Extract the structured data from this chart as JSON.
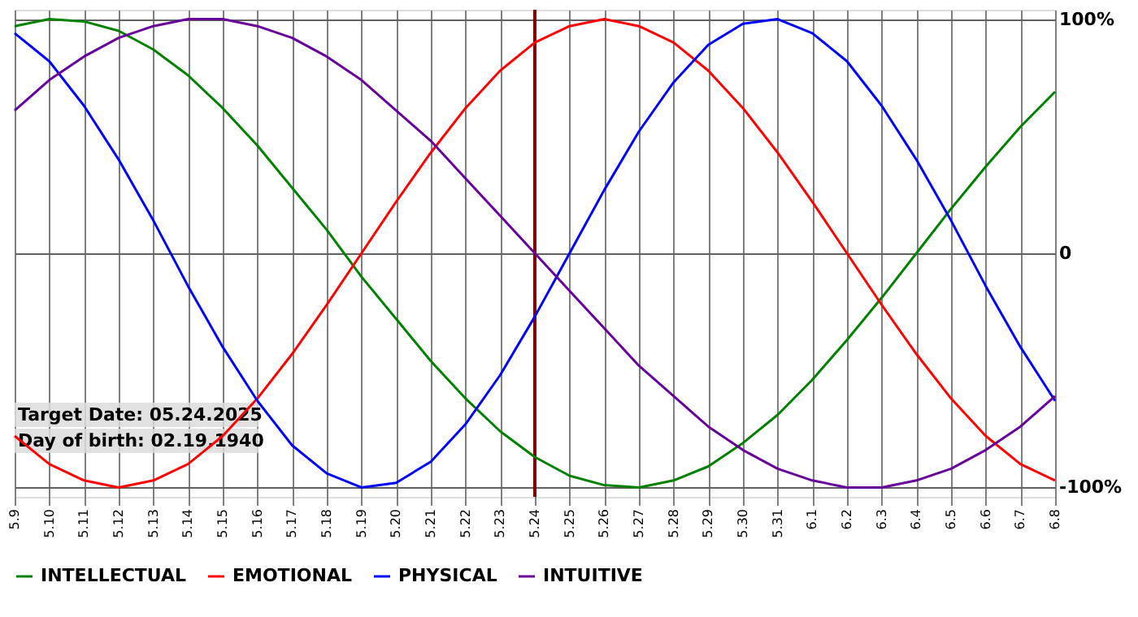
{
  "chart_data": {
    "type": "line",
    "categories": [
      "5.9",
      "5.10",
      "5.11",
      "5.12",
      "5.13",
      "5.14",
      "5.15",
      "5.16",
      "5.17",
      "5.18",
      "5.19",
      "5.20",
      "5.21",
      "5.22",
      "5.23",
      "5.24",
      "5.25",
      "5.26",
      "5.27",
      "5.28",
      "5.29",
      "5.30",
      "5.31",
      "6.1",
      "6.2",
      "6.3",
      "6.4",
      "6.5",
      "6.6",
      "6.7",
      "6.8"
    ],
    "series": [
      {
        "name": "INTELLECTUAL",
        "color": "#008000",
        "values": [
          97,
          100,
          99,
          95,
          87,
          76,
          62,
          46,
          28,
          10,
          -10,
          -28,
          -46,
          -62,
          -76,
          -87,
          -95,
          -99,
          -100,
          -97,
          -91,
          -81,
          -69,
          -54,
          -37,
          -19,
          0,
          19,
          37,
          54,
          69
        ]
      },
      {
        "name": "EMOTIONAL",
        "color": "#ff0000",
        "values": [
          -78,
          -90,
          -97,
          -100,
          -97,
          -90,
          -78,
          -62,
          -43,
          -22,
          0,
          22,
          43,
          62,
          78,
          90,
          97,
          100,
          97,
          90,
          78,
          62,
          43,
          22,
          0,
          -22,
          -43,
          -62,
          -78,
          -90,
          -97
        ]
      },
      {
        "name": "PHYSICAL",
        "color": "#0000ff",
        "values": [
          94,
          82,
          63,
          40,
          14,
          -14,
          -40,
          -63,
          -82,
          -94,
          -100,
          -98,
          -89,
          -73,
          -52,
          -27,
          0,
          27,
          52,
          73,
          89,
          98,
          100,
          94,
          82,
          63,
          40,
          14,
          -14,
          -40,
          -63
        ]
      },
      {
        "name": "INTUITIVE",
        "color": "#660099",
        "values": [
          61,
          74,
          84,
          92,
          97,
          100,
          100,
          97,
          92,
          84,
          74,
          61,
          48,
          32,
          16,
          0,
          -16,
          -32,
          -48,
          -61,
          -74,
          -84,
          -92,
          -97,
          -100,
          -100,
          -97,
          -92,
          -84,
          -74,
          -61
        ]
      }
    ],
    "ylim": [
      -104,
      104
    ],
    "yticks": [
      {
        "value": -100,
        "label": "-100%"
      },
      0,
      {
        "value": 100,
        "label": "100%"
      }
    ],
    "grid": true,
    "legend": "bottom",
    "ref_lines": [
      {
        "axis": "x",
        "value": "5.24",
        "color": "#800000"
      }
    ],
    "annotations": [
      "Target Date: 05.24.2025",
      "Day of birth: 02.19.1940"
    ]
  }
}
